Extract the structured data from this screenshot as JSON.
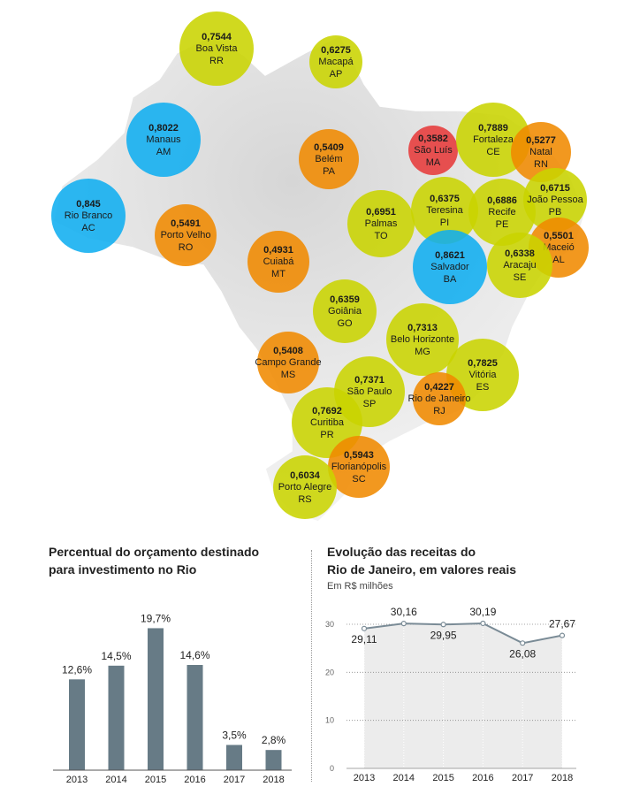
{
  "colors": {
    "green": "#c9d400",
    "orange": "#f08a00",
    "blue": "#10aef0",
    "red": "#e63a3a",
    "bar": "#677b86",
    "line": "#7a8b96",
    "area": "#ececec"
  },
  "map": {
    "cities": [
      {
        "value": "0,7544",
        "name": "Boa Vista",
        "uf": "RR",
        "color": "green"
      },
      {
        "value": "0,6275",
        "name": "Macapá",
        "uf": "AP",
        "color": "green"
      },
      {
        "value": "0,8022",
        "name": "Manaus",
        "uf": "AM",
        "color": "blue"
      },
      {
        "value": "0,5409",
        "name": "Belém",
        "uf": "PA",
        "color": "orange"
      },
      {
        "value": "0,3582",
        "name": "São Luís",
        "uf": "MA",
        "color": "red"
      },
      {
        "value": "0,7889",
        "name": "Fortaleza",
        "uf": "CE",
        "color": "green"
      },
      {
        "value": "0,5277",
        "name": "Natal",
        "uf": "RN",
        "color": "orange"
      },
      {
        "value": "0,845",
        "name": "Rio Branco",
        "uf": "AC",
        "color": "blue"
      },
      {
        "value": "0,5491",
        "name": "Porto Velho",
        "uf": "RO",
        "color": "orange"
      },
      {
        "value": "0,6951",
        "name": "Palmas",
        "uf": "TO",
        "color": "green"
      },
      {
        "value": "0,6375",
        "name": "Teresina",
        "uf": "PI",
        "color": "green"
      },
      {
        "value": "0,6886",
        "name": "Recife",
        "uf": "PE",
        "color": "green"
      },
      {
        "value": "0,6715",
        "name": "João Pessoa",
        "uf": "PB",
        "color": "green"
      },
      {
        "value": "0,5501",
        "name": "Maceió",
        "uf": "AL",
        "color": "orange"
      },
      {
        "value": "0,4931",
        "name": "Cuiabá",
        "uf": "MT",
        "color": "orange"
      },
      {
        "value": "0,8621",
        "name": "Salvador",
        "uf": "BA",
        "color": "blue"
      },
      {
        "value": "0,6338",
        "name": "Aracaju",
        "uf": "SE",
        "color": "green"
      },
      {
        "value": "0,6359",
        "name": "Goiânia",
        "uf": "GO",
        "color": "green"
      },
      {
        "value": "0,7313",
        "name": "Belo Horizonte",
        "uf": "MG",
        "color": "green"
      },
      {
        "value": "0,5408",
        "name": "Campo Grande",
        "uf": "MS",
        "color": "orange"
      },
      {
        "value": "0,7825",
        "name": "Vitória",
        "uf": "ES",
        "color": "green"
      },
      {
        "value": "0,7371",
        "name": "São Paulo",
        "uf": "SP",
        "color": "green"
      },
      {
        "value": "0,4227",
        "name": "Rio de Janeiro",
        "uf": "RJ",
        "color": "orange"
      },
      {
        "value": "0,7692",
        "name": "Curitiba",
        "uf": "PR",
        "color": "green"
      },
      {
        "value": "0,5943",
        "name": "Florianópolis",
        "uf": "SC",
        "color": "orange"
      },
      {
        "value": "0,6034",
        "name": "Porto Alegre",
        "uf": "RS",
        "color": "green"
      }
    ]
  },
  "chart_data": [
    {
      "type": "bar",
      "title": "Percentual do orçamento destinado para investimento no Rio",
      "title_lines": [
        "Percentual do orçamento destinado",
        "para investimento no Rio"
      ],
      "categories": [
        "2013",
        "2014",
        "2015",
        "2016",
        "2017",
        "2018"
      ],
      "values": [
        12.6,
        14.5,
        19.7,
        14.6,
        3.5,
        2.8
      ],
      "value_labels": [
        "12,6%",
        "14,5%",
        "19,7%",
        "14,6%",
        "3,5%",
        "2,8%"
      ],
      "ylim": [
        0,
        20
      ],
      "grid": false
    },
    {
      "type": "line",
      "title": "Evolução das receitas do Rio de Janeiro, em valores reais",
      "title_lines": [
        "Evolução das receitas do",
        "Rio de Janeiro, em valores reais"
      ],
      "subtitle": "Em R$ milhões",
      "x": [
        "2013",
        "2014",
        "2015",
        "2016",
        "2017",
        "2018"
      ],
      "values": [
        29.11,
        30.16,
        29.95,
        30.19,
        26.08,
        27.67
      ],
      "value_labels": [
        "29,11",
        "30,16",
        "29,95",
        "30,19",
        "26,08",
        "27,67"
      ],
      "yticks": [
        "0",
        "10",
        "20",
        "30"
      ],
      "ylim": [
        0,
        30
      ],
      "grid": true
    }
  ]
}
